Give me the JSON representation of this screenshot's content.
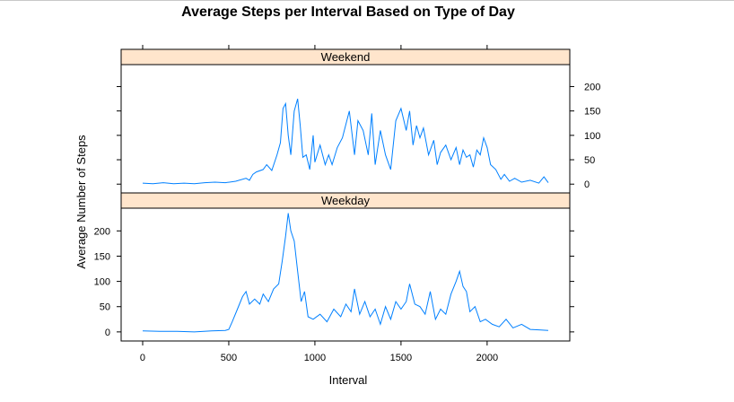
{
  "chart_data": {
    "type": "line",
    "title": "Average Steps per Interval Based on Type of Day",
    "xlabel": "Interval",
    "ylabel": "Average Number of Steps",
    "xlim": [
      -125,
      2480
    ],
    "ylim": [
      -18,
      245
    ],
    "x_ticks": [
      0,
      500,
      1000,
      1500,
      2000
    ],
    "y_ticks": [
      0,
      50,
      100,
      150,
      200
    ],
    "grid": false,
    "line_color": "#0080ff",
    "strip_color": "#ffe5cc",
    "panels": [
      {
        "name": "Weekend",
        "x": [
          0,
          60,
          120,
          180,
          240,
          300,
          360,
          420,
          480,
          540,
          600,
          620,
          640,
          660,
          700,
          720,
          750,
          780,
          800,
          815,
          830,
          845,
          860,
          880,
          900,
          915,
          930,
          950,
          970,
          990,
          1000,
          1030,
          1060,
          1080,
          1100,
          1130,
          1160,
          1200,
          1230,
          1250,
          1280,
          1310,
          1330,
          1350,
          1380,
          1410,
          1440,
          1470,
          1500,
          1530,
          1550,
          1570,
          1590,
          1610,
          1630,
          1660,
          1690,
          1710,
          1730,
          1760,
          1790,
          1820,
          1840,
          1860,
          1880,
          1900,
          1920,
          1940,
          1960,
          1980,
          2000,
          2020,
          2050,
          2080,
          2100,
          2130,
          2160,
          2200,
          2250,
          2300,
          2330,
          2355
        ],
        "y": [
          2,
          1,
          3,
          1,
          2,
          1,
          3,
          4,
          3,
          6,
          12,
          8,
          20,
          25,
          30,
          40,
          28,
          60,
          85,
          155,
          165,
          100,
          60,
          150,
          175,
          120,
          55,
          60,
          30,
          100,
          45,
          80,
          40,
          60,
          40,
          75,
          95,
          150,
          60,
          130,
          110,
          60,
          145,
          40,
          110,
          60,
          30,
          130,
          155,
          110,
          150,
          80,
          120,
          95,
          115,
          60,
          90,
          40,
          65,
          80,
          50,
          75,
          40,
          70,
          55,
          60,
          35,
          70,
          60,
          95,
          75,
          40,
          30,
          10,
          20,
          6,
          12,
          4,
          8,
          2,
          15,
          3
        ]
      },
      {
        "name": "Weekday",
        "x": [
          0,
          100,
          200,
          300,
          400,
          480,
          500,
          520,
          550,
          580,
          600,
          620,
          650,
          680,
          700,
          730,
          760,
          790,
          810,
          830,
          845,
          860,
          880,
          900,
          920,
          940,
          960,
          990,
          1030,
          1070,
          1110,
          1150,
          1180,
          1210,
          1230,
          1260,
          1290,
          1320,
          1350,
          1380,
          1410,
          1440,
          1470,
          1500,
          1530,
          1550,
          1580,
          1610,
          1640,
          1670,
          1700,
          1730,
          1760,
          1790,
          1820,
          1840,
          1860,
          1880,
          1900,
          1930,
          1960,
          1990,
          2030,
          2070,
          2110,
          2150,
          2200,
          2250,
          2300,
          2355
        ],
        "y": [
          2,
          1,
          1,
          0,
          2,
          3,
          5,
          20,
          45,
          70,
          80,
          55,
          65,
          55,
          75,
          60,
          85,
          95,
          140,
          190,
          235,
          200,
          180,
          120,
          60,
          80,
          30,
          25,
          35,
          20,
          45,
          30,
          55,
          40,
          85,
          35,
          60,
          30,
          45,
          15,
          50,
          25,
          60,
          45,
          60,
          95,
          55,
          50,
          35,
          80,
          25,
          45,
          35,
          75,
          100,
          120,
          90,
          80,
          40,
          50,
          20,
          25,
          15,
          10,
          25,
          8,
          15,
          5,
          4,
          3
        ]
      }
    ]
  }
}
